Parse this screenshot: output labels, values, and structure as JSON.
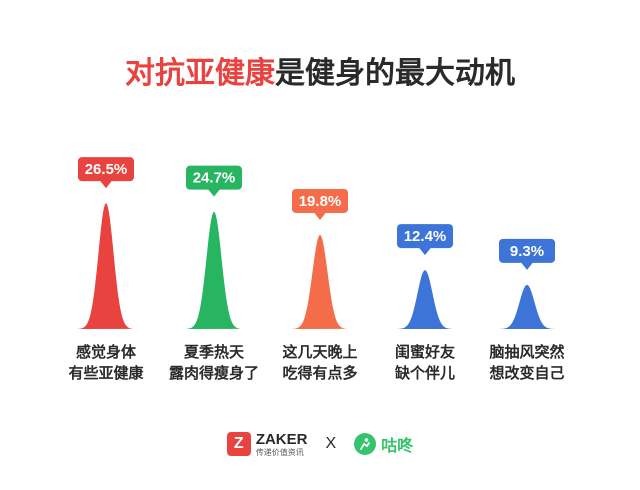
{
  "title": {
    "highlight": "对抗亚健康",
    "rest": "是健身的最大动机",
    "highlight_color": "#e8433f"
  },
  "chart_data": {
    "type": "area",
    "title": "对抗亚健康是健身的最大动机",
    "unit": "%",
    "categories": [
      [
        "感觉身体",
        "有些亚健康"
      ],
      [
        "夏季热天",
        "露肉得瘦身了"
      ],
      [
        "这几天晚上",
        "吃得有点多"
      ],
      [
        "闺蜜好友",
        "缺个伴儿"
      ],
      [
        "脑抽风突然",
        "想改变自己"
      ]
    ],
    "values": [
      26.5,
      24.7,
      19.8,
      12.4,
      9.3
    ],
    "labels": [
      "26.5%",
      "24.7%",
      "19.8%",
      "12.4%",
      "9.3%"
    ],
    "colors": [
      "#e8433f",
      "#27b562",
      "#f56c4a",
      "#3c74d8",
      "#3c74d8"
    ],
    "grid": false,
    "legend": "none"
  },
  "footer": {
    "zaker_icon": "Z",
    "zaker_name": "ZAKER",
    "zaker_tagline": "传递价值资讯",
    "separator": "X",
    "gudong_icon": "gudong-logo-icon",
    "gudong_name": "咕咚"
  }
}
